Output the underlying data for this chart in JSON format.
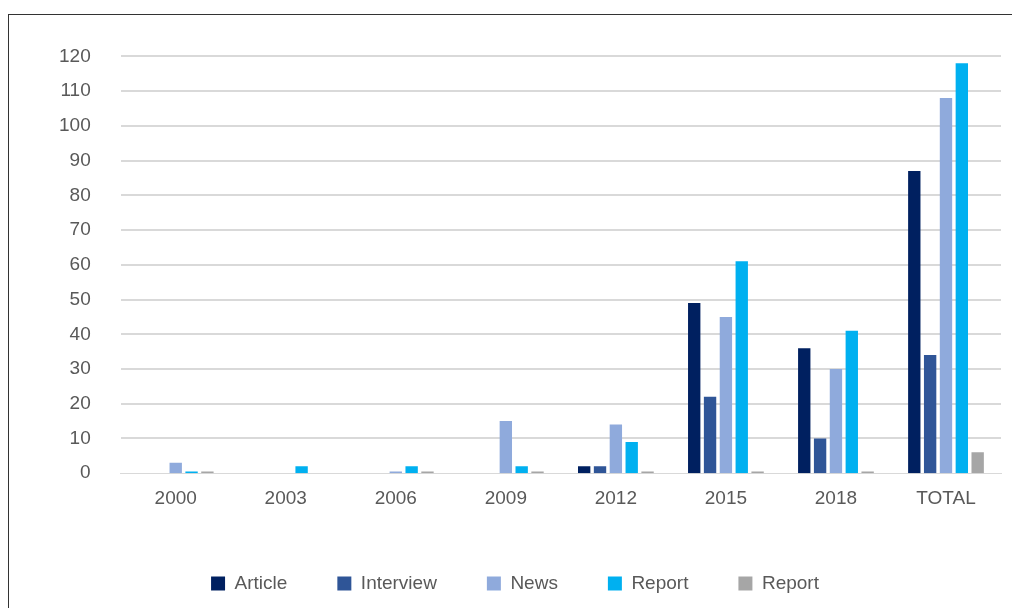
{
  "chart_data": {
    "type": "bar",
    "categories": [
      "2000",
      "2003",
      "2006",
      "2009",
      "2012",
      "2015",
      "2018",
      "TOTAL"
    ],
    "series": [
      {
        "name": "Article",
        "color": "#002060",
        "values": [
          0,
          0,
          0,
          0,
          2,
          49,
          36,
          87
        ]
      },
      {
        "name": "Interview",
        "color": "#2f5597",
        "values": [
          0,
          0,
          0,
          0,
          2,
          22,
          10,
          34
        ]
      },
      {
        "name": "News",
        "color": "#8faadc",
        "values": [
          3,
          0,
          0.5,
          15,
          14,
          45,
          30,
          108
        ]
      },
      {
        "name": "Report",
        "color": "#00b0f0",
        "values": [
          0.5,
          2,
          2,
          2,
          9,
          61,
          41,
          118
        ]
      },
      {
        "name": "Report",
        "color": "#a6a6a6",
        "values": [
          0.5,
          0,
          0.5,
          0.5,
          0.5,
          0.5,
          0.5,
          6
        ]
      }
    ],
    "ylim": [
      0,
      120
    ],
    "yticks": [
      0,
      10,
      20,
      30,
      40,
      50,
      60,
      70,
      80,
      90,
      100,
      110,
      120
    ],
    "grid": "y",
    "legend": "bottom"
  }
}
